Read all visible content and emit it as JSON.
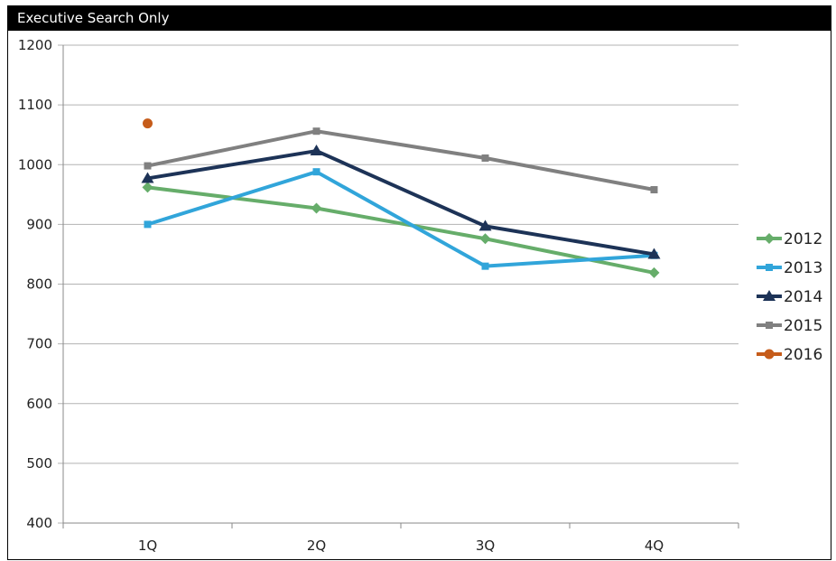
{
  "chart_data": {
    "type": "line",
    "title": "Executive Search Only",
    "xlabel": "",
    "ylabel": "",
    "categories": [
      "1Q",
      "2Q",
      "3Q",
      "4Q"
    ],
    "ylim": [
      400,
      1200
    ],
    "yticks": [
      400,
      500,
      600,
      700,
      800,
      900,
      1000,
      1100,
      1200
    ],
    "grid": "horizontal",
    "legend": "right",
    "series": [
      {
        "name": "2012",
        "color": "#66ad6a",
        "marker": "diamond",
        "values": [
          962,
          927,
          876,
          819
        ]
      },
      {
        "name": "2013",
        "color": "#31a5da",
        "marker": "square",
        "values": [
          900,
          988,
          830,
          848
        ]
      },
      {
        "name": "2014",
        "color": "#1d3357",
        "marker": "triangle",
        "values": [
          977,
          1023,
          897,
          850
        ]
      },
      {
        "name": "2015",
        "color": "#808080",
        "marker": "square",
        "values": [
          998,
          1056,
          1011,
          958
        ]
      },
      {
        "name": "2016",
        "color": "#c65c1a",
        "marker": "circle",
        "values": [
          1069,
          null,
          null,
          null
        ]
      }
    ]
  }
}
